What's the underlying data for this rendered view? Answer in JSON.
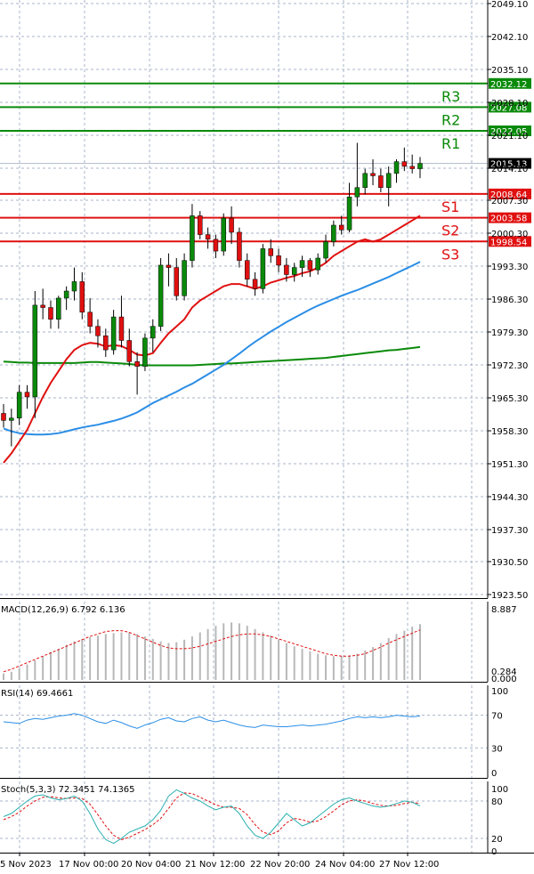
{
  "chart_data": {
    "type": "candlestick",
    "main": {
      "price_ticks": [
        "2049.10",
        "2042.10",
        "2035.10",
        "2028.10",
        "2021.10",
        "2014.10",
        "2007.30",
        "2000.30",
        "1993.30",
        "1986.30",
        "1979.30",
        "1972.30",
        "1965.30",
        "1958.30",
        "1951.30",
        "1944.30",
        "1937.30",
        "1930.50",
        "1923.50"
      ],
      "ylim": [
        1923.5,
        2049.1
      ],
      "current_price": "2015.13",
      "levels": [
        {
          "name": "R3",
          "value": 2032.12,
          "label": "2032.12",
          "color": "#0a8a0a"
        },
        {
          "name": "R2",
          "value": 2027.08,
          "label": "2027.08",
          "color": "#0a8a0a"
        },
        {
          "name": "R1",
          "value": 2022.05,
          "label": "2022.05",
          "color": "#0a8a0a"
        },
        {
          "name": "S1",
          "value": 2008.64,
          "label": "2008.64",
          "color": "#e01010"
        },
        {
          "name": "S2",
          "value": 2003.58,
          "label": "2003.58",
          "color": "#e01010"
        },
        {
          "name": "S3",
          "value": 1998.54,
          "label": "1998.54",
          "color": "#e01010"
        }
      ],
      "candles": [
        {
          "o": 1962.0,
          "h": 1964.0,
          "l": 1959.0,
          "c": 1960.5
        },
        {
          "o": 1960.5,
          "h": 1963.0,
          "l": 1955.0,
          "c": 1961.0
        },
        {
          "o": 1961.0,
          "h": 1968.0,
          "l": 1959.5,
          "c": 1966.5
        },
        {
          "o": 1966.5,
          "h": 1968.0,
          "l": 1963.0,
          "c": 1965.5
        },
        {
          "o": 1965.5,
          "h": 1988.0,
          "l": 1961.0,
          "c": 1985.0
        },
        {
          "o": 1985.0,
          "h": 1988.5,
          "l": 1982.0,
          "c": 1984.5
        },
        {
          "o": 1984.5,
          "h": 1986.0,
          "l": 1980.0,
          "c": 1982.0
        },
        {
          "o": 1982.0,
          "h": 1987.0,
          "l": 1980.0,
          "c": 1986.5
        },
        {
          "o": 1986.5,
          "h": 1989.0,
          "l": 1984.0,
          "c": 1988.0
        },
        {
          "o": 1988.0,
          "h": 1993.0,
          "l": 1986.0,
          "c": 1990.0
        },
        {
          "o": 1990.0,
          "h": 1992.0,
          "l": 1982.0,
          "c": 1983.5
        },
        {
          "o": 1983.5,
          "h": 1986.5,
          "l": 1979.0,
          "c": 1980.5
        },
        {
          "o": 1980.5,
          "h": 1982.0,
          "l": 1976.0,
          "c": 1978.5
        },
        {
          "o": 1978.5,
          "h": 1980.0,
          "l": 1974.0,
          "c": 1975.5
        },
        {
          "o": 1975.5,
          "h": 1984.0,
          "l": 1974.5,
          "c": 1982.5
        },
        {
          "o": 1982.5,
          "h": 1987.0,
          "l": 1976.0,
          "c": 1977.5
        },
        {
          "o": 1977.5,
          "h": 1980.0,
          "l": 1972.0,
          "c": 1973.0
        },
        {
          "o": 1973.0,
          "h": 1975.0,
          "l": 1966.0,
          "c": 1972.0
        },
        {
          "o": 1972.0,
          "h": 1979.0,
          "l": 1971.0,
          "c": 1978.0
        },
        {
          "o": 1978.0,
          "h": 1982.0,
          "l": 1975.0,
          "c": 1980.5
        },
        {
          "o": 1980.5,
          "h": 1995.0,
          "l": 1979.5,
          "c": 1993.5
        },
        {
          "o": 1993.5,
          "h": 1996.0,
          "l": 1989.0,
          "c": 1993.0
        },
        {
          "o": 1993.0,
          "h": 1995.0,
          "l": 1986.0,
          "c": 1987.0
        },
        {
          "o": 1987.0,
          "h": 1996.0,
          "l": 1986.0,
          "c": 1994.5
        },
        {
          "o": 1994.5,
          "h": 2006.5,
          "l": 1993.0,
          "c": 2004.0
        },
        {
          "o": 2004.0,
          "h": 2005.0,
          "l": 1999.0,
          "c": 2000.0
        },
        {
          "o": 2000.0,
          "h": 2001.5,
          "l": 1997.0,
          "c": 1999.0
        },
        {
          "o": 1999.0,
          "h": 2000.0,
          "l": 1995.0,
          "c": 1996.5
        },
        {
          "o": 1996.5,
          "h": 2004.5,
          "l": 1995.5,
          "c": 2003.5
        },
        {
          "o": 2003.5,
          "h": 2006.0,
          "l": 1998.0,
          "c": 2000.5
        },
        {
          "o": 2000.5,
          "h": 2001.5,
          "l": 1993.0,
          "c": 1994.5
        },
        {
          "o": 1994.5,
          "h": 1996.0,
          "l": 1989.0,
          "c": 1990.5
        },
        {
          "o": 1990.5,
          "h": 1992.0,
          "l": 1987.0,
          "c": 1988.5
        },
        {
          "o": 1988.5,
          "h": 1998.0,
          "l": 1987.5,
          "c": 1997.0
        },
        {
          "o": 1997.0,
          "h": 1999.0,
          "l": 1994.0,
          "c": 1995.5
        },
        {
          "o": 1995.5,
          "h": 1997.0,
          "l": 1992.0,
          "c": 1993.5
        },
        {
          "o": 1993.5,
          "h": 1995.0,
          "l": 1990.0,
          "c": 1991.5
        },
        {
          "o": 1991.5,
          "h": 1994.0,
          "l": 1990.0,
          "c": 1993.0
        },
        {
          "o": 1993.0,
          "h": 1995.5,
          "l": 1991.0,
          "c": 1994.5
        },
        {
          "o": 1994.5,
          "h": 1995.0,
          "l": 1991.0,
          "c": 1992.5
        },
        {
          "o": 1992.5,
          "h": 1996.0,
          "l": 1991.5,
          "c": 1995.0
        },
        {
          "o": 1995.0,
          "h": 2000.0,
          "l": 1994.0,
          "c": 1998.5
        },
        {
          "o": 1998.5,
          "h": 2003.0,
          "l": 1997.5,
          "c": 2002.0
        },
        {
          "o": 2002.0,
          "h": 2004.0,
          "l": 2000.0,
          "c": 2001.0
        },
        {
          "o": 2001.0,
          "h": 2011.0,
          "l": 2000.5,
          "c": 2008.0
        },
        {
          "o": 2008.0,
          "h": 2019.5,
          "l": 2006.0,
          "c": 2010.0
        },
        {
          "o": 2010.0,
          "h": 2014.0,
          "l": 2008.5,
          "c": 2013.0
        },
        {
          "o": 2013.0,
          "h": 2016.0,
          "l": 2010.5,
          "c": 2012.5
        },
        {
          "o": 2012.5,
          "h": 2014.0,
          "l": 2009.0,
          "c": 2010.0
        },
        {
          "o": 2010.0,
          "h": 2014.5,
          "l": 2006.0,
          "c": 2013.0
        },
        {
          "o": 2013.0,
          "h": 2016.0,
          "l": 2011.0,
          "c": 2015.5
        },
        {
          "o": 2015.5,
          "h": 2018.5,
          "l": 2013.5,
          "c": 2014.5
        },
        {
          "o": 2014.5,
          "h": 2017.0,
          "l": 2013.0,
          "c": 2014.0
        },
        {
          "o": 2014.0,
          "h": 2016.5,
          "l": 2012.0,
          "c": 2015.13
        }
      ],
      "ema_red": [
        1951.5,
        1953.5,
        1956.0,
        1958.5,
        1962.0,
        1965.5,
        1968.5,
        1971.0,
        1973.5,
        1975.5,
        1976.5,
        1977.0,
        1976.8,
        1976.2,
        1976.5,
        1976.3,
        1975.5,
        1974.5,
        1974.3,
        1974.8,
        1977.0,
        1979.0,
        1980.5,
        1982.0,
        1984.5,
        1986.0,
        1987.0,
        1988.0,
        1989.0,
        1989.5,
        1989.5,
        1989.0,
        1988.5,
        1989.0,
        1989.8,
        1990.3,
        1990.8,
        1991.2,
        1991.8,
        1992.2,
        1993.0,
        1994.0,
        1995.5,
        1996.5,
        1997.5,
        1998.5,
        1999.0,
        1998.5,
        1999.0,
        2000.0,
        2001.0,
        2002.0,
        2003.0,
        2004.0
      ],
      "sma_blue": [
        1958.8,
        1958.2,
        1957.8,
        1957.6,
        1957.5,
        1957.5,
        1957.6,
        1957.8,
        1958.2,
        1958.6,
        1959.0,
        1959.3,
        1959.6,
        1960.0,
        1960.4,
        1960.9,
        1961.5,
        1962.2,
        1963.2,
        1964.2,
        1965.0,
        1965.8,
        1966.6,
        1967.5,
        1968.3,
        1969.3,
        1970.3,
        1971.3,
        1972.3,
        1973.5,
        1974.7,
        1976.0,
        1977.2,
        1978.3,
        1979.4,
        1980.4,
        1981.4,
        1982.3,
        1983.2,
        1984.1,
        1984.9,
        1985.6,
        1986.3,
        1987.0,
        1987.6,
        1988.2,
        1988.9,
        1989.6,
        1990.3,
        1991.0,
        1991.8,
        1992.6,
        1993.4,
        1994.2
      ],
      "sma_green": [
        1973.0,
        1972.9,
        1972.8,
        1972.8,
        1972.7,
        1972.7,
        1972.7,
        1972.7,
        1972.7,
        1972.7,
        1972.8,
        1972.9,
        1972.9,
        1972.8,
        1972.7,
        1972.6,
        1972.5,
        1972.3,
        1972.2,
        1972.2,
        1972.2,
        1972.2,
        1972.2,
        1972.2,
        1972.2,
        1972.3,
        1972.4,
        1972.5,
        1972.6,
        1972.6,
        1972.7,
        1972.8,
        1972.9,
        1973.0,
        1973.1,
        1973.2,
        1973.3,
        1973.4,
        1973.5,
        1973.6,
        1973.7,
        1973.8,
        1974.0,
        1974.2,
        1974.4,
        1974.6,
        1974.8,
        1975.0,
        1975.2,
        1975.4,
        1975.5,
        1975.7,
        1975.9,
        1976.1
      ]
    },
    "macd": {
      "label": "MACD(12,26,9) 6.792 6.136",
      "top_tick": "8.887",
      "bottom_tick": "0.284",
      "bottom_tick2": "0.000",
      "ylim": [
        0,
        8.887
      ],
      "hist": [
        0.8,
        1.0,
        1.4,
        1.9,
        2.4,
        2.9,
        3.4,
        3.8,
        4.3,
        4.7,
        5.0,
        5.2,
        5.4,
        5.6,
        5.7,
        5.8,
        5.8,
        5.6,
        5.3,
        5.0,
        4.7,
        4.5,
        4.6,
        4.9,
        5.3,
        5.8,
        6.2,
        6.6,
        6.9,
        7.0,
        6.9,
        6.6,
        6.2,
        5.8,
        5.4,
        4.9,
        4.5,
        4.1,
        3.8,
        3.5,
        3.2,
        3.0,
        2.9,
        2.9,
        3.0,
        3.2,
        3.6,
        4.0,
        4.5,
        5.1,
        5.6,
        6.0,
        6.5,
        6.8
      ],
      "signal": [
        1.0,
        1.3,
        1.7,
        2.1,
        2.5,
        2.9,
        3.3,
        3.7,
        4.1,
        4.5,
        4.9,
        5.3,
        5.6,
        5.9,
        6.0,
        6.0,
        5.8,
        5.4,
        5.0,
        4.6,
        4.2,
        3.9,
        3.8,
        3.8,
        3.9,
        4.1,
        4.4,
        4.7,
        5.0,
        5.3,
        5.5,
        5.6,
        5.6,
        5.5,
        5.3,
        5.0,
        4.7,
        4.4,
        4.1,
        3.8,
        3.5,
        3.2,
        3.0,
        2.9,
        2.9,
        3.0,
        3.2,
        3.6,
        4.0,
        4.5,
        4.9,
        5.3,
        5.7,
        6.1
      ]
    },
    "rsi": {
      "label": "RSI(14) 69.4661",
      "ticks": [
        "100",
        "70",
        "30",
        "0"
      ],
      "ylim": [
        0,
        100
      ],
      "values": [
        62,
        61,
        60,
        64,
        66,
        65,
        67,
        69,
        70,
        72,
        70,
        66,
        62,
        60,
        64,
        61,
        57,
        54,
        58,
        61,
        65,
        67,
        63,
        62,
        66,
        68,
        64,
        62,
        64,
        61,
        58,
        56,
        55,
        58,
        57,
        56,
        56,
        57,
        58,
        57,
        58,
        59,
        61,
        63,
        66,
        68,
        67,
        68,
        67,
        68,
        70,
        69,
        68,
        69
      ]
    },
    "stoch": {
      "label": "Stoch(5,3,3) 72.3451 74.1365",
      "ticks": [
        "100",
        "80",
        "20",
        "0"
      ],
      "ylim": [
        0,
        100
      ],
      "k": [
        55,
        60,
        70,
        80,
        88,
        90,
        85,
        82,
        84,
        88,
        80,
        60,
        35,
        18,
        12,
        20,
        30,
        35,
        40,
        50,
        65,
        88,
        98,
        92,
        85,
        80,
        72,
        66,
        70,
        72,
        60,
        40,
        25,
        20,
        30,
        45,
        60,
        50,
        40,
        45,
        55,
        65,
        75,
        82,
        85,
        80,
        76,
        72,
        70,
        72,
        76,
        80,
        78,
        72
      ],
      "d": [
        50,
        55,
        62,
        72,
        80,
        86,
        87,
        85,
        84,
        85,
        84,
        75,
        58,
        40,
        25,
        18,
        22,
        28,
        34,
        42,
        52,
        68,
        85,
        93,
        92,
        86,
        80,
        74,
        70,
        70,
        68,
        58,
        42,
        30,
        26,
        32,
        45,
        52,
        50,
        46,
        48,
        55,
        64,
        74,
        80,
        82,
        80,
        76,
        73,
        72,
        73,
        76,
        78,
        76
      ]
    },
    "x_labels": [
      "5 Nov 2023",
      "17 Nov 00:00",
      "20 Nov 04:00",
      "21 Nov 12:00",
      "22 Nov 20:00",
      "24 Nov 04:00",
      "27 Nov 12:00"
    ]
  },
  "colors": {
    "bull": "#0a8a0a",
    "bear": "#e01010",
    "ema": "#e01010",
    "sma_blue": "#2b8ee6",
    "sma_green": "#0a8a0a",
    "macd_hist": "#b8b8b8",
    "macd_signal": "#e01010",
    "rsi": "#2b8ee6",
    "stoch_k": "#2ab0b0",
    "stoch_d": "#e01010",
    "grid": "#a8b4c8",
    "current_box": "#000000"
  }
}
